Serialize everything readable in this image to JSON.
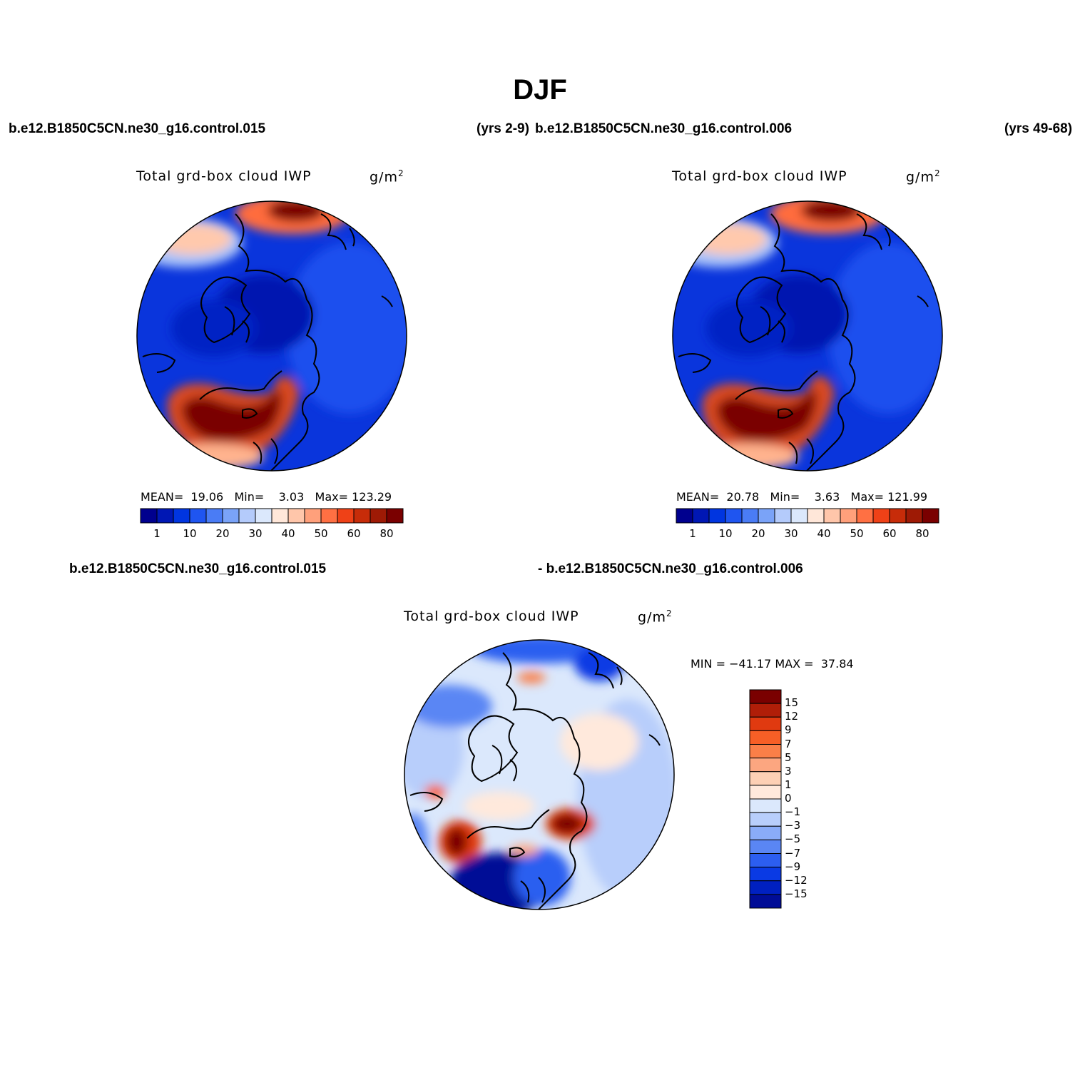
{
  "title": "DJF",
  "case_labels": {
    "top_left": "b.e12.B1850C5CN.ne30_g16.control.015",
    "top_mid_years": "(yrs 2-9)",
    "top_right": "b.e12.B1850C5CN.ne30_g16.control.006",
    "top_right_years": "(yrs 49-68)",
    "bottom_left": "b.e12.B1850C5CN.ne30_g16.control.015",
    "bottom_right": "- b.e12.B1850C5CN.ne30_g16.control.006"
  },
  "panels": [
    {
      "id": "case-015",
      "variable": "Total grd-box cloud IWP",
      "units": "g/m",
      "units_sup": "2",
      "stats": {
        "mean_label": "MEAN=",
        "mean": "19.06",
        "min_label": "Min=",
        "min": "3.03",
        "max_label": "Max=",
        "max": "123.29"
      }
    },
    {
      "id": "case-006",
      "variable": "Total grd-box cloud IWP",
      "units": "g/m",
      "units_sup": "2",
      "stats": {
        "mean_label": "MEAN=",
        "mean": "20.78",
        "min_label": "Min=",
        "min": "3.63",
        "max_label": "Max=",
        "max": "121.99"
      }
    },
    {
      "id": "difference",
      "variable": "Total grd-box cloud IWP",
      "units": "g/m",
      "units_sup": "2",
      "stats": {
        "text": "MIN = −41.17 MAX =  37.84"
      }
    }
  ],
  "colorbar_abs": {
    "colors": [
      "#00008e",
      "#0017b4",
      "#0035e0",
      "#1f55f0",
      "#4a7cf5",
      "#7aa3f8",
      "#b4cbfb",
      "#dbe8fc",
      "#ffe7d9",
      "#ffc6aa",
      "#ffa07b",
      "#ff7043",
      "#ef4117",
      "#c72c09",
      "#9e1a05",
      "#7a0000"
    ],
    "tick_labels": [
      "1",
      "10",
      "20",
      "30",
      "40",
      "50",
      "60",
      "80"
    ]
  },
  "colorbar_diff": {
    "colors": [
      "#7a0000",
      "#b01e08",
      "#e03a10",
      "#f75f26",
      "#fa7f48",
      "#fca680",
      "#fdd0b5",
      "#ffe9dc",
      "#dbe8fc",
      "#b8cefb",
      "#8aacf8",
      "#5a86f4",
      "#2c5ef0",
      "#0a3ae4",
      "#0020c0",
      "#000c96"
    ],
    "tick_labels": [
      "15",
      "12",
      "9",
      "7",
      "5",
      "3",
      "1",
      "0",
      "−1",
      "−3",
      "−5",
      "−7",
      "−9",
      "−12",
      "−15"
    ]
  },
  "chart_data": {
    "type": "heatmap",
    "title": "DJF",
    "maps": [
      {
        "name": "b.e12.B1850C5CN.ne30_g16.control.015",
        "mean": 19.06,
        "min": 3.03,
        "max": 123.29
      },
      {
        "name": "b.e12.B1850C5CN.ne30_g16.control.006",
        "mean": 20.78,
        "min": 3.63,
        "max": 121.99
      },
      {
        "name": "- b.e12.B1850C5CN.ne30_g16.control.006",
        "min": -41.17,
        "max": 37.84
      }
    ],
    "levels_abs": [
      1,
      10,
      20,
      30,
      40,
      50,
      60,
      80
    ],
    "levels_diff": [
      15,
      12,
      9,
      7,
      5,
      3,
      1,
      0,
      -1,
      -3,
      -5,
      -7,
      -9,
      -12,
      -15
    ]
  }
}
